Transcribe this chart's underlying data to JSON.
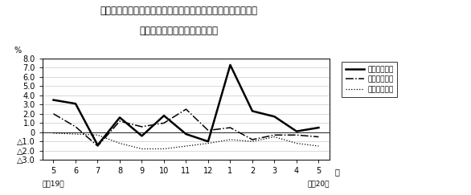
{
  "title_line1": "第４図　　賃金、労働時間、常用雇用指数対前年同月比の推移",
  "title_line2": "（規横５人以上　調査産業計）",
  "xlabel_months": [
    "5",
    "6",
    "7",
    "8",
    "9",
    "10",
    "11",
    "12",
    "1",
    "2",
    "3",
    "4",
    "5"
  ],
  "xlabel_bottom_left": "平成19年",
  "xlabel_bottom_right": "平成20年",
  "xlabel_right_label": "月",
  "ylabel": "%",
  "ylim": [
    -3.0,
    8.0
  ],
  "yticks": [
    8.0,
    7.0,
    6.0,
    5.0,
    4.0,
    3.0,
    2.0,
    1.0,
    0.0,
    -1.0,
    -2.0,
    -3.0
  ],
  "ytick_labels": [
    "8.0",
    "7.0",
    "6.0",
    "5.0",
    "4.0",
    "3.0",
    "2.0",
    "1.0",
    "0",
    "△1.0",
    "△2.0",
    "△3.0"
  ],
  "series_wage": [
    3.5,
    3.1,
    -1.4,
    1.6,
    -0.4,
    1.8,
    -0.2,
    -1.0,
    7.3,
    2.3,
    1.7,
    0.1,
    0.5
  ],
  "series_hours": [
    2.0,
    0.6,
    -1.5,
    1.2,
    0.6,
    1.0,
    2.5,
    0.2,
    0.5,
    -0.8,
    -0.3,
    -0.3,
    -0.5
  ],
  "series_employment": [
    -0.1,
    -0.2,
    -0.3,
    -1.2,
    -1.8,
    -1.8,
    -1.5,
    -1.2,
    -0.8,
    -1.0,
    -0.5,
    -1.2,
    -1.5
  ],
  "legend_labels": [
    "現金給与総額",
    "総実労働時間",
    "常用雇用指数"
  ],
  "background_color": "#ffffff",
  "grid_color": "#bbbbbb",
  "title_fontsize": 8.5,
  "tick_fontsize": 7,
  "legend_fontsize": 6.5
}
